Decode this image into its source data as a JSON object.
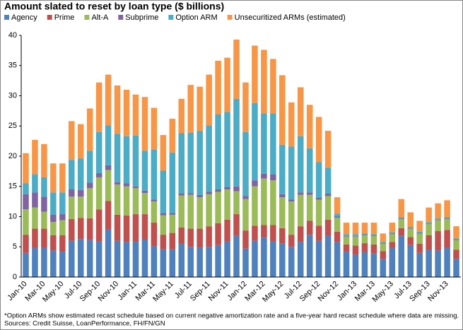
{
  "chart_data": {
    "type": "stacked-bar",
    "title": "Amount slated to reset by loan type ($ billions)",
    "notes": [
      "*Option ARMs show estimated recast schedule based on current negative amortization rate and a five-year hard recast schedule where data are missing.",
      "Sources: Credit Suisse, LoanPerformance, FH/FN/GN"
    ],
    "categories": [
      "Jan-10",
      null,
      "Mar-10",
      null,
      "May-10",
      null,
      "Jul-10",
      null,
      "Sep-10",
      null,
      "Nov-10",
      null,
      "Jan-11",
      null,
      "Mar-11",
      null,
      "May-11",
      null,
      "Jul-11",
      null,
      "Sep-11",
      null,
      "Nov-11",
      null,
      "Jan-12",
      null,
      "Mar-12",
      null,
      "May-12",
      null,
      "Jul-12",
      null,
      "Sep-12",
      null,
      "Nov-12",
      null,
      "Jan-13",
      null,
      "Mar-13",
      null,
      "May-13",
      null,
      "Jul-13",
      null,
      "Sep-13",
      null,
      "Nov-13",
      null
    ],
    "series": [
      {
        "name": "Agency",
        "color": "#4f81bd",
        "values": [
          4,
          4.8,
          4.8,
          4.4,
          4.2,
          6,
          6.3,
          6.1,
          5.9,
          7.9,
          6,
          5.8,
          5.9,
          6.2,
          5.1,
          4.6,
          4.6,
          5.5,
          5,
          4.9,
          5,
          5.3,
          5.9,
          6.8,
          4.7,
          6,
          6.6,
          5.9,
          5.6,
          5,
          5.8,
          7,
          6,
          6.9,
          5.8,
          4.2,
          3.7,
          4.1,
          3.9,
          3,
          4.8,
          6.8,
          5.3,
          4,
          4.5,
          4.4,
          4.8,
          3
        ]
      },
      {
        "name": "Prime",
        "color": "#c0504d",
        "values": [
          3,
          3.2,
          3.2,
          2.5,
          2.7,
          3.6,
          3.5,
          3.6,
          5.3,
          4.7,
          4.3,
          4.4,
          4.5,
          4.2,
          3.9,
          2.4,
          2.7,
          2.7,
          3,
          3.1,
          3.4,
          3.6,
          3.6,
          3.6,
          3,
          2.5,
          2,
          2.7,
          2.5,
          2,
          2.6,
          2.3,
          2.5,
          2.6,
          1.7,
          1.2,
          1.5,
          1.5,
          1.5,
          1.3,
          1,
          1.3,
          1.3,
          1.5,
          2.4,
          3.2,
          3,
          1.5
        ]
      },
      {
        "name": "Alt-A",
        "color": "#9bbb59",
        "values": [
          4.2,
          3.5,
          2.8,
          2.2,
          2.5,
          3.7,
          3.5,
          5,
          5.3,
          5.1,
          5,
          4.8,
          4.3,
          3.5,
          3.5,
          3.2,
          3,
          5.3,
          5.6,
          5.2,
          5.3,
          5.2,
          5,
          3.8,
          5.2,
          6.5,
          7.7,
          7.4,
          5.1,
          5.5,
          5.2,
          4.3,
          4.3,
          3.9,
          2.3,
          1.3,
          1.5,
          1.3,
          1.4,
          1.2,
          1.3,
          1.5,
          1.4,
          1.7,
          1.9,
          1.8,
          1.8,
          1.6
        ]
      },
      {
        "name": "Subprime",
        "color": "#8064a2",
        "values": [
          2.5,
          2.5,
          2.5,
          1.2,
          1,
          1.2,
          1.1,
          0.9,
          0.7,
          0.8,
          0.4,
          0.5,
          0.3,
          0.4,
          0.3,
          0.4,
          0.3,
          0.3,
          0.3,
          0.4,
          0.4,
          0.4,
          0.4,
          0.8,
          0.5,
          1,
          0.8,
          1,
          0.5,
          0.3,
          0.4,
          0.4,
          0.3,
          0.4,
          0.2,
          0.1,
          0.1,
          0.1,
          0.1,
          0.1,
          0.1,
          0.1,
          0.1,
          0.1,
          0.1,
          0.1,
          0.1,
          0.1
        ]
      },
      {
        "name": "Option ARM",
        "color": "#4bacc6",
        "values": [
          1.8,
          3,
          3.2,
          3.7,
          3.6,
          4.9,
          5.2,
          5.3,
          6.8,
          6.6,
          8,
          7.8,
          8.4,
          6.6,
          8.3,
          7,
          10,
          10,
          10,
          10.6,
          11,
          12.4,
          12.4,
          14.5,
          10.6,
          12.8,
          10,
          10.1,
          8.2,
          8.8,
          9.3,
          7.3,
          5.9,
          4.3,
          0.5,
          0.3,
          0.3,
          0.2,
          0.2,
          0.2,
          0.2,
          0.2,
          0.2,
          0.2,
          0.2,
          0.2,
          0.2,
          0.2
        ]
      },
      {
        "name": "Unsecuritized ARMs (estimated)",
        "color": "#f79646",
        "values": [
          5,
          5.7,
          5.5,
          4.8,
          4.8,
          6.4,
          5.7,
          7,
          8.2,
          8.4,
          8,
          7.7,
          6.8,
          8.9,
          6.9,
          5.9,
          5.6,
          5.7,
          7.9,
          7.3,
          8.4,
          8.9,
          9,
          9.8,
          8.2,
          9.5,
          10.5,
          9,
          11.5,
          7.3,
          8.1,
          7.2,
          7.5,
          6.1,
          2.7,
          1.9,
          1.9,
          1.8,
          1.9,
          1.4,
          1.6,
          3,
          2.4,
          1.8,
          2.4,
          2.5,
          2.8,
          2
        ]
      }
    ],
    "ylim": [
      0,
      40
    ],
    "yticks": [
      0,
      5,
      10,
      15,
      20,
      25,
      30,
      35,
      40
    ],
    "grid": false
  }
}
